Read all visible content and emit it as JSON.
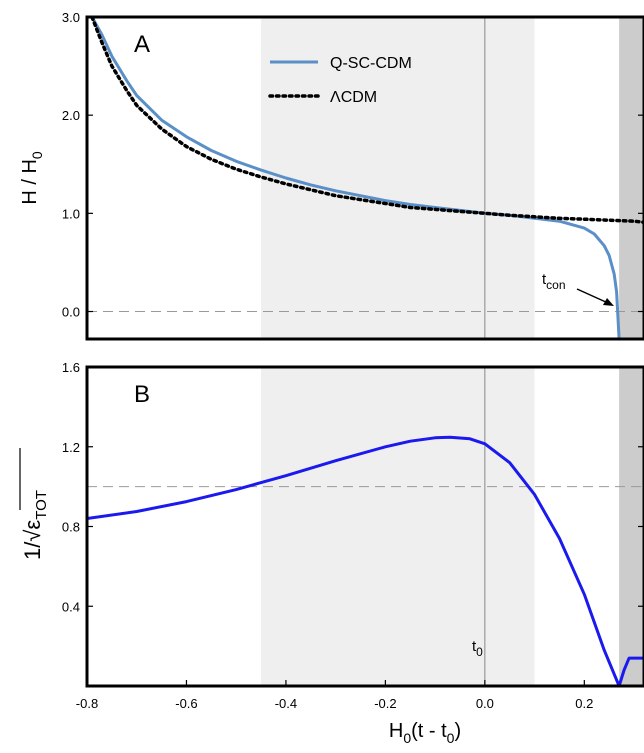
{
  "chart_data": [
    {
      "panel": "A",
      "type": "line",
      "panel_label": "A",
      "ylabel": "H / H",
      "ylabel_sub": "0",
      "xlim": [
        -0.8,
        0.32
      ],
      "ylim": [
        -0.28,
        3.0
      ],
      "yticks": [
        0.0,
        1.0,
        2.0,
        3.0
      ],
      "ytick_labels": [
        "0.0",
        "1.0",
        "2.0",
        "3.0"
      ],
      "grid": false,
      "legend_position": "top-center",
      "shaded_regions": [
        {
          "from": -0.45,
          "to": 0.1,
          "color": "#efefef"
        },
        {
          "from": 0.27,
          "to": 0.32,
          "color": "#cccccc"
        }
      ],
      "reference_lines": [
        {
          "orientation": "vertical",
          "x": 0.0,
          "color": "#888888",
          "style": "solid"
        },
        {
          "orientation": "horizontal",
          "y": 0.0,
          "color": "#999999",
          "style": "dashed"
        }
      ],
      "series": [
        {
          "name": "Q-SC-CDM",
          "color": "#5b8fc7",
          "style": "solid",
          "x": [
            -0.79,
            -0.77,
            -0.75,
            -0.72,
            -0.7,
            -0.65,
            -0.6,
            -0.55,
            -0.5,
            -0.45,
            -0.4,
            -0.35,
            -0.3,
            -0.25,
            -0.2,
            -0.15,
            -0.1,
            -0.05,
            0.0,
            0.05,
            0.1,
            0.15,
            0.2,
            0.22,
            0.24,
            0.25,
            0.26,
            0.265,
            0.27
          ],
          "y": [
            3.0,
            2.82,
            2.6,
            2.35,
            2.2,
            1.95,
            1.78,
            1.64,
            1.53,
            1.44,
            1.36,
            1.29,
            1.23,
            1.18,
            1.13,
            1.09,
            1.06,
            1.03,
            1.0,
            0.98,
            0.95,
            0.92,
            0.85,
            0.79,
            0.67,
            0.57,
            0.38,
            0.2,
            -0.28
          ]
        },
        {
          "name": "ΛCDM",
          "color": "#000000",
          "style": "dotted",
          "x": [
            -0.79,
            -0.77,
            -0.75,
            -0.72,
            -0.7,
            -0.65,
            -0.6,
            -0.55,
            -0.5,
            -0.45,
            -0.4,
            -0.35,
            -0.3,
            -0.25,
            -0.2,
            -0.15,
            -0.1,
            -0.05,
            0.0,
            0.05,
            0.1,
            0.15,
            0.2,
            0.25,
            0.3,
            0.32
          ],
          "y": [
            3.0,
            2.74,
            2.5,
            2.25,
            2.1,
            1.86,
            1.68,
            1.55,
            1.45,
            1.37,
            1.3,
            1.24,
            1.18,
            1.14,
            1.1,
            1.06,
            1.04,
            1.02,
            1.0,
            0.98,
            0.965,
            0.95,
            0.94,
            0.93,
            0.92,
            0.91
          ]
        }
      ],
      "annotations": [
        {
          "text": "t",
          "subscript": "con",
          "points_to": {
            "x": 0.27,
            "y": 0.0
          }
        }
      ]
    },
    {
      "panel": "B",
      "type": "line",
      "panel_label": "B",
      "ylabel": "1/√ε",
      "ylabel_sub": "TOT",
      "xlabel": "H",
      "xlabel_sub": "0",
      "xlabel_rest_a": "(t - t",
      "xlabel_rest_b": ")",
      "xlim": [
        -0.8,
        0.32
      ],
      "ylim": [
        0.0,
        1.6
      ],
      "xticks": [
        -0.8,
        -0.6,
        -0.4,
        -0.2,
        0.0,
        0.2
      ],
      "xtick_labels": [
        "-0.8",
        "-0.6",
        "-0.4",
        "-0.2",
        "0.0",
        "0.2"
      ],
      "yticks": [
        0.4,
        0.8,
        1.2,
        1.6
      ],
      "ytick_labels": [
        "0.4",
        "0.8",
        "1.2",
        "1.6"
      ],
      "grid": false,
      "shaded_regions": [
        {
          "from": -0.45,
          "to": 0.1,
          "color": "#efefef"
        },
        {
          "from": 0.27,
          "to": 0.32,
          "color": "#cccccc"
        }
      ],
      "reference_lines": [
        {
          "orientation": "vertical",
          "x": 0.0,
          "color": "#888888",
          "style": "solid"
        },
        {
          "orientation": "horizontal",
          "y": 1.0,
          "color": "#999999",
          "style": "dashed"
        }
      ],
      "series": [
        {
          "color": "#1a1aee",
          "style": "solid",
          "x": [
            -0.8,
            -0.7,
            -0.6,
            -0.5,
            -0.45,
            -0.4,
            -0.3,
            -0.2,
            -0.15,
            -0.1,
            -0.07,
            -0.03,
            0.0,
            0.05,
            0.1,
            0.15,
            0.2,
            0.24,
            0.27,
            0.28,
            0.29,
            0.32
          ],
          "y": [
            0.84,
            0.875,
            0.925,
            0.985,
            1.02,
            1.055,
            1.13,
            1.2,
            1.228,
            1.245,
            1.248,
            1.24,
            1.215,
            1.12,
            0.96,
            0.74,
            0.46,
            0.18,
            0.0,
            0.08,
            0.14,
            0.14
          ]
        }
      ],
      "annotations": [
        {
          "text": "t",
          "subscript": "0",
          "at": {
            "x": 0.0,
            "y": 0.22
          }
        }
      ]
    }
  ]
}
